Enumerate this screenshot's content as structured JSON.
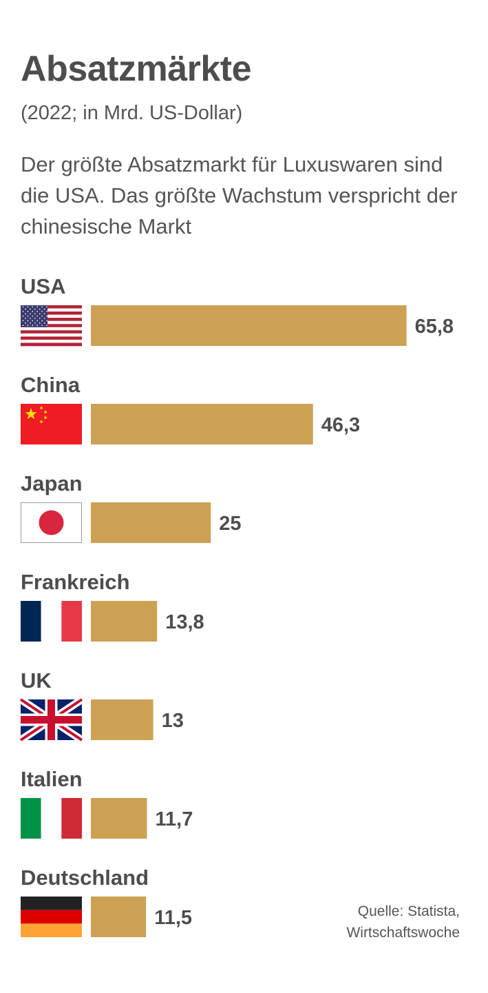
{
  "header": {
    "title": "Absatzmärkte",
    "subtitle": "(2022; in Mrd. US-Dollar)",
    "description": "Der größte Absatzmarkt für Luxuswaren sind die USA. Das größte Wachstum verspricht der chinesische Markt"
  },
  "chart_data": {
    "type": "bar",
    "orientation": "horizontal",
    "categories": [
      "USA",
      "China",
      "Japan",
      "Frankreich",
      "UK",
      "Italien",
      "Deutschland"
    ],
    "values": [
      65.8,
      46.3,
      25,
      13.8,
      13,
      11.7,
      11.5
    ],
    "value_labels": [
      "65,8",
      "46,3",
      "25",
      "13,8",
      "13",
      "11,7",
      "11,5"
    ],
    "flags": [
      "usa-flag-icon",
      "china-flag-icon",
      "japan-flag-icon",
      "france-flag-icon",
      "uk-flag-icon",
      "italy-flag-icon",
      "germany-flag-icon"
    ],
    "unit": "Mrd. US-Dollar",
    "year": "2022",
    "bar_color": "#cca153",
    "grid": false,
    "legend": "none"
  },
  "source": {
    "line1": "Quelle: Statista,",
    "line2": "Wirtschaftswoche"
  },
  "colors": {
    "text": "#4d4d4d",
    "bar": "#cca153"
  }
}
